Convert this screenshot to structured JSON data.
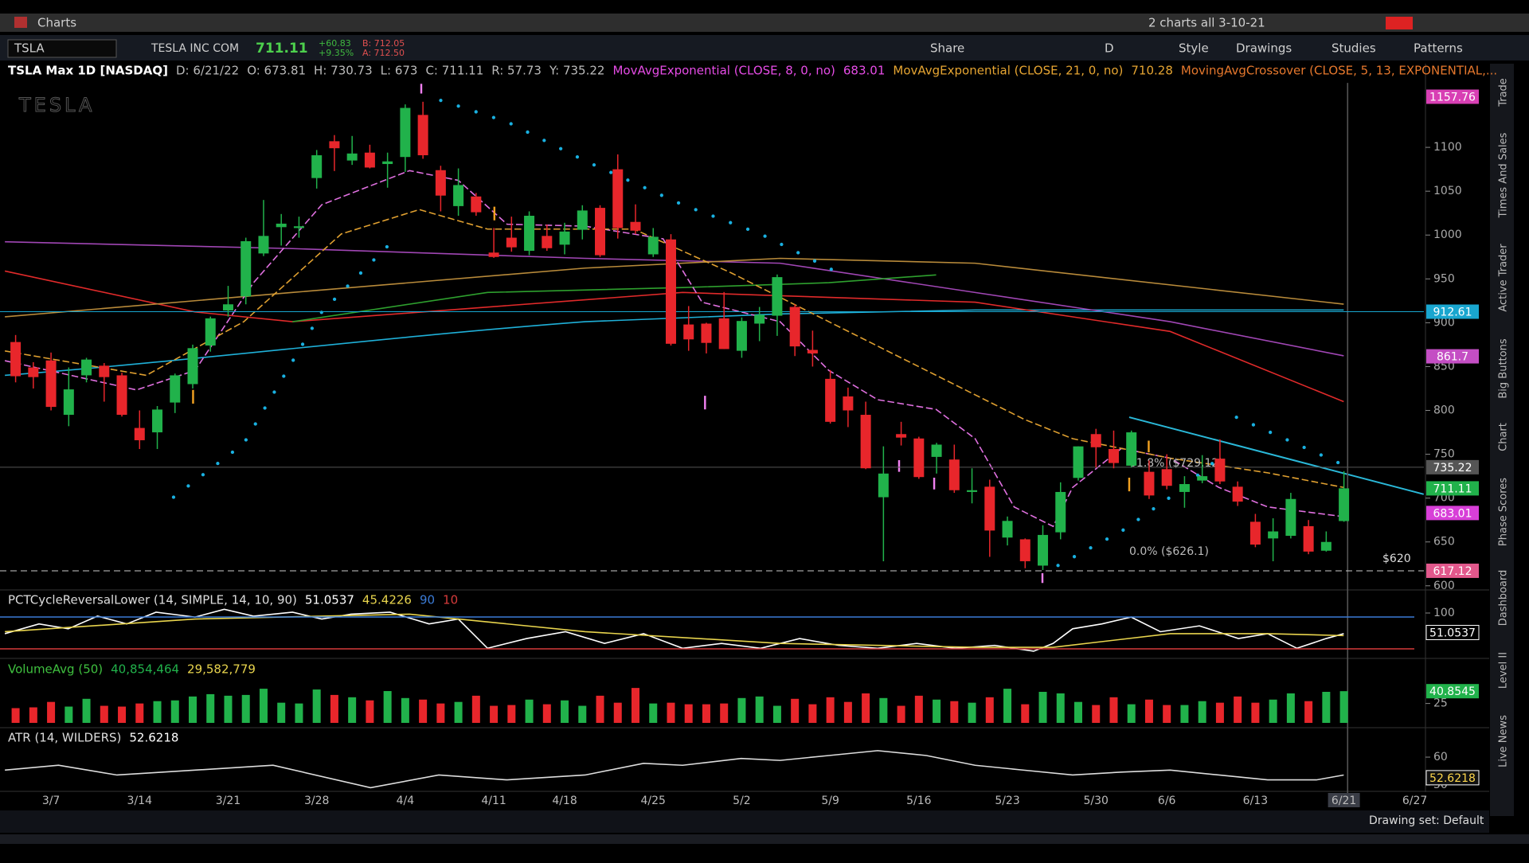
{
  "window": {
    "title": "Charts",
    "layout_name": "2 charts all 3-10-21"
  },
  "toolbar": {
    "symbol": "TSLA",
    "description": "TESLA INC COM",
    "last": "711.11",
    "change": "+60.83",
    "change_pct": "+9.35%",
    "bid": "B: 712.05",
    "ask": "A: 712.50",
    "buttons": [
      "Share",
      "D",
      "Style",
      "Drawings",
      "Studies",
      "Patterns"
    ]
  },
  "chart_data": [
    {
      "type": "candlestick",
      "title": "TSLA Max 1D [NASDAQ]",
      "header": [
        "D: 6/21/22",
        "O: 673.81",
        "H: 730.73",
        "L: 673",
        "C: 711.11",
        "R: 57.73",
        "Y: 735.22"
      ],
      "studies": [
        {
          "name": "MovAvgExponential (CLOSE, 8, 0, no)",
          "value": "683.01",
          "color": "#e64ce6"
        },
        {
          "name": "MovAvgExponential (CLOSE, 21, 0, no)",
          "value": "710.28",
          "color": "#e6a532"
        },
        {
          "name": "MovingAvgCrossover (CLOSE, 5, 13, EXPONENTIAL,...",
          "color": "#e6782d"
        }
      ],
      "watermark": "TESLA",
      "up_color": "#21b24b",
      "down_color": "#e8262b",
      "candles": [
        [
          878,
          886,
          832,
          839
        ],
        [
          849,
          855,
          825,
          838
        ],
        [
          857,
          866,
          800,
          804
        ],
        [
          795,
          849,
          782,
          824
        ],
        [
          840,
          860,
          832,
          858
        ],
        [
          851,
          854,
          810,
          838
        ],
        [
          840,
          843,
          793,
          795
        ],
        [
          780,
          800,
          756,
          766
        ],
        [
          775,
          805,
          756,
          801
        ],
        [
          809,
          842,
          797,
          840
        ],
        [
          830,
          875,
          825,
          871
        ],
        [
          874,
          907,
          867,
          905
        ],
        [
          914,
          942,
          907,
          921
        ],
        [
          930,
          997,
          921,
          993
        ],
        [
          979,
          1040,
          976,
          999
        ],
        [
          1009,
          1024,
          988,
          1013
        ],
        [
          1008,
          1021,
          997,
          1010
        ],
        [
          1065,
          1097,
          1053,
          1091
        ],
        [
          1107,
          1114,
          1073,
          1099
        ],
        [
          1085,
          1113,
          1080,
          1093
        ],
        [
          1094,
          1103,
          1076,
          1077
        ],
        [
          1081,
          1094,
          1054,
          1084
        ],
        [
          1089,
          1149,
          1072,
          1145
        ],
        [
          1137,
          1152,
          1087,
          1091
        ],
        [
          1074,
          1079,
          1027,
          1045
        ],
        [
          1033,
          1076,
          1022,
          1057
        ],
        [
          1044,
          1048,
          1022,
          1026
        ],
        [
          980,
          1008,
          974,
          975
        ],
        [
          997,
          1021,
          981,
          986
        ],
        [
          982,
          1027,
          977,
          1022
        ],
        [
          999,
          1012,
          982,
          985
        ],
        [
          989,
          1014,
          978,
          1004
        ],
        [
          1006,
          1034,
          995,
          1028
        ],
        [
          1031,
          1034,
          975,
          977
        ],
        [
          1075,
          1092,
          996,
          1008
        ],
        [
          1015,
          1035,
          1001,
          1005
        ],
        [
          978,
          1008,
          975,
          998
        ],
        [
          995,
          1001,
          874,
          876
        ],
        [
          898,
          919,
          868,
          881
        ],
        [
          899,
          900,
          865,
          877
        ],
        [
          905,
          935,
          870,
          870
        ],
        [
          868,
          906,
          860,
          902
        ],
        [
          899,
          918,
          879,
          909
        ],
        [
          908,
          955,
          885,
          952
        ],
        [
          918,
          921,
          862,
          873
        ],
        [
          869,
          891,
          850,
          865
        ],
        [
          836,
          846,
          785,
          787
        ],
        [
          816,
          826,
          781,
          800
        ],
        [
          795,
          810,
          733,
          734
        ],
        [
          701,
          759,
          628,
          728
        ],
        [
          773,
          787,
          760,
          769
        ],
        [
          768,
          770,
          722,
          724
        ],
        [
          747,
          763,
          728,
          761
        ],
        [
          744,
          761,
          706,
          709
        ],
        [
          707,
          734,
          694,
          709
        ],
        [
          713,
          721,
          633,
          663
        ],
        [
          655,
          679,
          646,
          674
        ],
        [
          653,
          654,
          620,
          628
        ],
        [
          623,
          669,
          618,
          658
        ],
        [
          661,
          718,
          653,
          707
        ],
        [
          723,
          759,
          720,
          759
        ],
        [
          773,
          779,
          735,
          758
        ],
        [
          756,
          777,
          734,
          740
        ],
        [
          737,
          777,
          735,
          775
        ],
        [
          730,
          743,
          699,
          703
        ],
        [
          733,
          750,
          710,
          714
        ],
        [
          707,
          725,
          689,
          716
        ],
        [
          720,
          749,
          717,
          725
        ],
        [
          745,
          767,
          716,
          719
        ],
        [
          713,
          719,
          691,
          696
        ],
        [
          673,
          682,
          644,
          647
        ],
        [
          654,
          677,
          628,
          662
        ],
        [
          657,
          706,
          654,
          699
        ],
        [
          668,
          675,
          636,
          639
        ],
        [
          640,
          662,
          639,
          650
        ],
        [
          673.81,
          730.73,
          673,
          711.11
        ]
      ],
      "ylim": [
        598,
        1170
      ],
      "yticks": [
        1100,
        1050,
        1000,
        950,
        900,
        850,
        800,
        750,
        700,
        650,
        600
      ],
      "levels": [
        {
          "value": 1157.76,
          "color": "#d83fb4"
        },
        {
          "value": 912.61,
          "color": "#19a6cf",
          "line": "solid"
        },
        {
          "value": 861.7,
          "color": "#c44ec4"
        },
        {
          "value": 735.22,
          "color": "#555555",
          "line": "solid"
        },
        {
          "value": 711.11,
          "color": "#21b24b"
        },
        {
          "value": 683.01,
          "color": "#d83fd8"
        },
        {
          "value": 617.12,
          "color": "#e2588c",
          "line": "dashed"
        }
      ],
      "annotations": [
        "61.8% ($729.12)",
        "0.0% ($626.1)",
        "$620"
      ]
    },
    {
      "type": "line",
      "title": "PCTCycleReversalLower (14, SIMPLE, 14, 10, 90)",
      "readouts": [
        {
          "value": 51.0537,
          "color": "#ffffff"
        },
        {
          "value": 45.4226,
          "color": "#e8d44d"
        },
        {
          "value": 90,
          "color": "#3b7bd6"
        },
        {
          "value": 10,
          "color": "#d63b3b"
        }
      ],
      "ylim": [
        0,
        100
      ],
      "yticks": [
        100
      ]
    },
    {
      "type": "bar",
      "title": "VolumeAvg (50)",
      "readouts": [
        {
          "value": 40.854464,
          "label": "40,854,464",
          "color": "#21b24b"
        },
        {
          "value": 29.582779,
          "label": "29,582,779",
          "color": "#e8d44d"
        }
      ],
      "values": [
        19,
        20,
        27,
        21,
        31,
        22,
        21,
        25,
        28,
        29,
        34,
        37,
        35,
        36,
        44,
        26,
        25,
        43,
        36,
        33,
        29,
        41,
        32,
        30,
        25,
        27,
        35,
        22,
        23,
        30,
        24,
        29,
        22,
        35,
        26,
        45,
        25,
        26,
        24,
        24,
        25,
        32,
        34,
        22,
        31,
        24,
        33,
        27,
        38,
        32,
        22,
        35,
        30,
        28,
        26,
        33,
        44,
        24,
        40,
        38,
        27,
        23,
        33,
        24,
        30,
        23,
        23,
        28,
        26,
        34,
        26,
        30,
        38,
        28,
        40,
        40.854464
      ],
      "last_badge": 40.8545,
      "ylim": [
        0,
        80
      ],
      "yticks": [
        25
      ]
    },
    {
      "type": "line",
      "title": "ATR (14, WILDERS)",
      "readouts": [
        {
          "value": 52.6218,
          "color": "#ffffff"
        }
      ],
      "ylim": [
        48.3,
        70
      ],
      "yticks": [
        60,
        50
      ]
    }
  ],
  "x_axis": {
    "categories": [
      null,
      null,
      "3/7",
      null,
      null,
      null,
      null,
      "3/14",
      null,
      null,
      null,
      null,
      "3/21",
      null,
      null,
      null,
      null,
      "3/28",
      null,
      null,
      null,
      null,
      "4/4",
      null,
      null,
      null,
      null,
      "4/11",
      null,
      null,
      null,
      "4/18",
      null,
      null,
      null,
      null,
      "4/25",
      null,
      null,
      null,
      null,
      "5/2",
      null,
      null,
      null,
      null,
      "5/9",
      null,
      null,
      null,
      null,
      "5/16",
      null,
      null,
      null,
      null,
      "5/23",
      null,
      null,
      null,
      null,
      "5/30",
      null,
      null,
      null,
      "6/6",
      null,
      null,
      null,
      null,
      "6/13",
      null,
      null,
      null,
      null,
      "6/21"
    ],
    "next_label": "6/27"
  },
  "side_tabs": [
    "Trade",
    "Times And Sales",
    "Active Trader",
    "Big Buttons",
    "Chart",
    "Phase Scores",
    "Dashboard",
    "Level II",
    "Live News"
  ],
  "footer": {
    "drawing_set": "Drawing set: Default"
  }
}
